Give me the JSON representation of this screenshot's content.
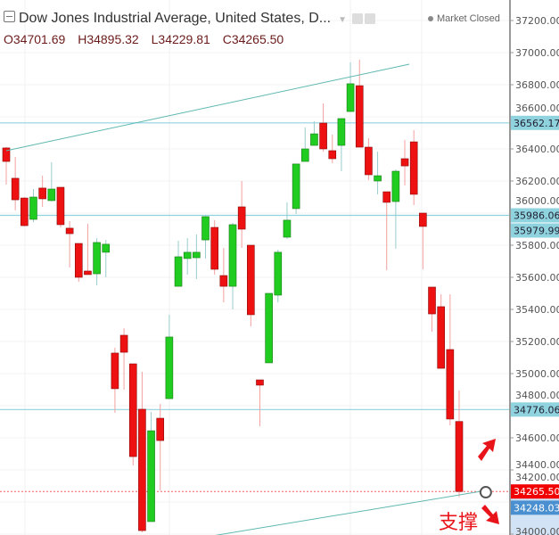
{
  "header": {
    "title": "Dow Jones Industrial Average, United States, D...",
    "market_status": "Market Closed",
    "ohlc": {
      "o_label": "O",
      "o": "34701.69",
      "h_label": "H",
      "h": "34895.32",
      "l_label": "L",
      "l": "34229.81",
      "c_label": "C",
      "c": "34265.50"
    }
  },
  "annotation_text": "支撑",
  "colors": {
    "up": "#1fcc1f",
    "down": "#ee1111",
    "level_line": "#8fd3df",
    "trendline": "#5fb8b0",
    "last_price": "#f20000",
    "support_badge": "#4a8fd0"
  },
  "chart_data": {
    "type": "candlestick",
    "ylim": [
      33950,
      37300
    ],
    "y_ticks": [
      "34000.00",
      "34200.00",
      "34400.00",
      "34600.00",
      "34800.00",
      "35000.00",
      "35200.00",
      "35400.00",
      "35600.00",
      "35800.00",
      "36000.00",
      "36200.00",
      "36400.00",
      "36600.00",
      "36800.00",
      "37000.00",
      "37200.00"
    ],
    "candles": [
      [
        36406,
        36411,
        36178,
        36322
      ],
      [
        36217,
        36350,
        36017,
        36083
      ],
      [
        36094,
        36100,
        35917,
        35922
      ],
      [
        35961,
        36150,
        35944,
        36100
      ],
      [
        36156,
        36233,
        36039,
        36089
      ],
      [
        36078,
        36317,
        36072,
        36150
      ],
      [
        36161,
        36161,
        35911,
        35928
      ],
      [
        35906,
        35950,
        35661,
        35872
      ],
      [
        35811,
        35811,
        35572,
        35600
      ],
      [
        35639,
        35933,
        35617,
        35617
      ],
      [
        35622,
        35844,
        35550,
        35817
      ],
      [
        35756,
        35833,
        35600,
        35806
      ],
      [
        35128,
        35161,
        34756,
        34906
      ],
      [
        35239,
        35283,
        34900,
        35133
      ],
      [
        35061,
        35061,
        34428,
        34483
      ],
      [
        34778,
        35011,
        34011,
        34022
      ],
      [
        34078,
        34761,
        34078,
        34644
      ],
      [
        34722,
        34811,
        34272,
        34583
      ],
      [
        34844,
        35367,
        34844,
        35228
      ],
      [
        35544,
        35828,
        35544,
        35728
      ],
      [
        35717,
        35844,
        35617,
        35756
      ],
      [
        35722,
        35867,
        35589,
        35756
      ],
      [
        35833,
        35983,
        35717,
        35978
      ],
      [
        35911,
        35956,
        35617,
        35650
      ],
      [
        35611,
        35783,
        35444,
        35544
      ],
      [
        35544,
        35939,
        35400,
        35928
      ],
      [
        36039,
        36200,
        35783,
        35900
      ],
      [
        35800,
        35800,
        35294,
        35367
      ],
      [
        34961,
        34961,
        34672,
        34928
      ],
      [
        35067,
        35500,
        35067,
        35500
      ],
      [
        35489,
        35772,
        35444,
        35756
      ],
      [
        35850,
        36067,
        35839,
        35956
      ],
      [
        36028,
        36306,
        35994,
        36306
      ],
      [
        36322,
        36533,
        36322,
        36400
      ],
      [
        36422,
        36572,
        36422,
        36494
      ],
      [
        36561,
        36683,
        36383,
        36400
      ],
      [
        36389,
        36489,
        36311,
        36339
      ],
      [
        36422,
        36589,
        36261,
        36589
      ],
      [
        36633,
        36939,
        36633,
        36806
      ],
      [
        36794,
        36956,
        36411,
        36411
      ],
      [
        36411,
        36467,
        36206,
        36239
      ],
      [
        36200,
        36383,
        36117,
        36233
      ],
      [
        36133,
        36133,
        35644,
        36067
      ],
      [
        36072,
        36272,
        35778,
        36261
      ],
      [
        36339,
        36456,
        36172,
        36294
      ],
      [
        36444,
        36517,
        36050,
        36117
      ],
      [
        36000,
        36000,
        35650,
        35917
      ],
      [
        35539,
        35539,
        35261,
        35372
      ],
      [
        35417,
        35494,
        35033,
        35033
      ],
      [
        35150,
        35494,
        34678,
        34717
      ],
      [
        34701.69,
        34895.32,
        34229.81,
        34265.5
      ]
    ],
    "levels": [
      {
        "value": 36562.17,
        "label": "36562.17"
      },
      {
        "value": 35986.06,
        "label": "35986.06"
      },
      {
        "value": 35979.99,
        "label": "35979.99",
        "line": false
      },
      {
        "value": 34776.06,
        "label": "34776.06"
      }
    ],
    "last_price": {
      "value": 34265.5,
      "label": "34265.50"
    },
    "support": {
      "value": 34248.03,
      "label": "34248.03"
    },
    "trendlines": [
      {
        "from": [
          1,
          36389
        ],
        "to": [
          45.5,
          36928
        ]
      },
      {
        "from": [
          13.2,
          33890
        ],
        "to": [
          54,
          34272
        ]
      }
    ]
  }
}
